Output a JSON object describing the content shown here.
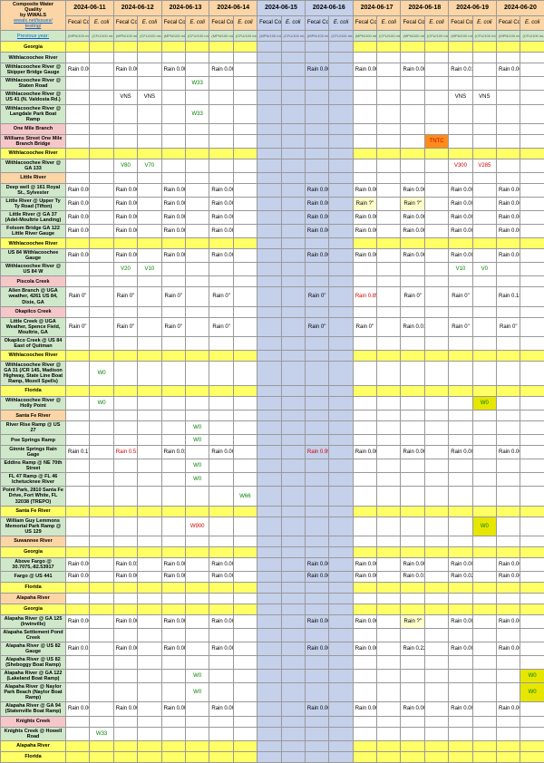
{
  "colors": {
    "orange": "#fbd5a5",
    "green": "#cfe8ca",
    "yellow": "#ffff66",
    "white": "#ffffff",
    "pink": "#f6c7c9",
    "hl_blue": "#c5d0eb",
    "red_text": "#d00000",
    "green_text": "#008000",
    "orange_hl": "#ff8c1a",
    "orange_hl2": "#ffd966",
    "dark_yellow": "#e6e600",
    "lt_yellow": "#ffffcc"
  },
  "header": {
    "title_lines": [
      "Composite Water",
      "Quality",
      "by WWALS"
    ],
    "link1": "wwals.net/issues/",
    "link2": "testing/",
    "prev_year": "Previous year:"
  },
  "dates": [
    "2024-06-11",
    "2024-06-12",
    "2024-06-13",
    "2024-06-14",
    "2024-06-15",
    "2024-06-16",
    "2024-06-17",
    "2024-06-18",
    "2024-06-19",
    "2024-06-20"
  ],
  "sub_fecal": "Fecal Coliform",
  "sub_ecoli": "E. coli",
  "unit_fecal": "(MPN/100 mL)",
  "unit_ecoli": "(CFU/100 mL)",
  "highlight_date_idx": [
    4,
    5
  ],
  "rows": [
    {
      "label": "Georgia",
      "bg": "yellow",
      "rowtype": "section"
    },
    {
      "label": "Withlacoochee River",
      "bg": "green",
      "cells": {}
    },
    {
      "label": "Withlacoochee River @ Skipper Bridge Gauge",
      "bg": "green",
      "cells": {
        "f0": "Rain 0.00\"",
        "f1": "Rain 0.00\"",
        "f2": "Rain 0.00\"",
        "f3": "Rain 0.00\"",
        "f5": "Rain 0.00\"",
        "f6": "Rain 0.00\"",
        "f7": "Rain 0.00\"",
        "f8": "Rain 0.01\"",
        "f9": "Rain 0.00\""
      }
    },
    {
      "label": "Withlacoochee River @ Staten Road",
      "bg": "green",
      "cells": {
        "e2": {
          "v": "W33",
          "c": "green_text"
        }
      }
    },
    {
      "label": "Withlacoochee River @ US 41 (N. Valdosta Rd.)",
      "bg": "green",
      "cells": {
        "f1": "VNS",
        "e1": "VNS",
        "f8": "VNS",
        "e8": "VNS"
      }
    },
    {
      "label": "Withlacoochee River @ Langdale Park Boat Ramp",
      "bg": "green",
      "cells": {
        "e2": {
          "v": "W33",
          "c": "green_text"
        }
      }
    },
    {
      "label": "One Mile Branch",
      "bg": "pink",
      "cells": {}
    },
    {
      "label": "Williams Street One Mile Branch Bridge",
      "bg": "pink",
      "cells": {
        "e7": {
          "v": "TNTC",
          "c": "red_text",
          "bg": "orange_hl"
        }
      }
    },
    {
      "label": "Withlacoochee River",
      "bg": "yellow",
      "cells": {},
      "rowtype": "blank"
    },
    {
      "label": "Withlacoochee River @ GA 133",
      "bg": "green",
      "cells": {
        "f1": {
          "v": "V80",
          "c": "green_text"
        },
        "e1": {
          "v": "V70",
          "c": "green_text"
        },
        "f8": {
          "v": "V300",
          "c": "red_text"
        },
        "e8": {
          "v": "V285",
          "c": "red_text"
        }
      }
    },
    {
      "label": "Little River",
      "bg": "orange",
      "cells": {}
    },
    {
      "label": "Deep well @ 161 Royal St., Sylvester",
      "bg": "green",
      "cells": {
        "f0": "Rain 0.00\"",
        "f1": "Rain 0.00\"",
        "f2": "Rain 0.00\"",
        "f3": "Rain 0.00\"",
        "f5": "Rain 0.00\"",
        "f6": "Rain 0.00\"",
        "f7": "Rain 0.00\"",
        "f8": "Rain 0.00\"",
        "f9": "Rain 0.00\""
      }
    },
    {
      "label": "Little River @ Upper Ty Ty Road (Tifton)",
      "bg": "green",
      "cells": {
        "f0": "Rain 0.00\"",
        "f1": "Rain 0.00\"",
        "f2": "Rain 0.00\"",
        "f3": "Rain 0.00\"",
        "f5": "Rain 0.00\"",
        "f6": {
          "v": "Rain ?\"",
          "bg": "lt_yellow"
        },
        "f7": {
          "v": "Rain ?\"",
          "bg": "lt_yellow"
        },
        "f8": "Rain 0.00\"",
        "f9": "Rain 0.00\""
      }
    },
    {
      "label": "Little River @ GA 37 (Adel-Moultrie Landing)",
      "bg": "green",
      "cells": {
        "f0": "Rain 0.00\"",
        "f1": "Rain 0.00\"",
        "f2": "Rain 0.00\"",
        "f3": "Rain 0.00\"",
        "f5": "Rain 0.00\"",
        "f6": "Rain 0.00\"",
        "f7": "Rain 0.00\"",
        "f8": "Rain 0.00\"",
        "f9": "Rain 0.00\""
      }
    },
    {
      "label": "Folsom Bridge GA 122 Little River Gauge",
      "bg": "green",
      "cells": {
        "f0": "Rain 0.00\"",
        "f1": "Rain 0.00\"",
        "f2": "Rain 0.00\"",
        "f3": "Rain 0.00\"",
        "f5": "Rain 0.00\"",
        "f6": "Rain 0.00\"",
        "f7": "Rain 0.00\"",
        "f8": "Rain 0.00\"",
        "f9": "Rain 0.00\""
      }
    },
    {
      "label": "Withlacoochee River",
      "bg": "yellow",
      "cells": {},
      "rowtype": "blank"
    },
    {
      "label": "US 84 Withlacoochee Gauge",
      "bg": "green",
      "cells": {
        "f0": "Rain 0.00\"",
        "f1": "Rain 0.00\"",
        "f2": "Rain 0.00\"",
        "f3": "Rain 0.00\"",
        "f5": "Rain 0.00\"",
        "f6": "Rain 0.00\"",
        "f7": "Rain 0.00\"",
        "f8": "Rain 0.00\"",
        "f9": "Rain 0.06\""
      }
    },
    {
      "label": "Withlacoochee River @ US 84 W",
      "bg": "green",
      "cells": {
        "f1": {
          "v": "V20",
          "c": "green_text"
        },
        "e1": {
          "v": "V10",
          "c": "green_text"
        },
        "f8": {
          "v": "V10",
          "c": "green_text"
        },
        "e8": {
          "v": "V0",
          "c": "green_text"
        }
      }
    },
    {
      "label": "Piscola Creek",
      "bg": "pink",
      "cells": {}
    },
    {
      "label": "Allen  Branch @ UGA weather, 4261 US 84, Dixie, GA",
      "bg": "green",
      "cells": {
        "f0": "Rain 0\"",
        "f1": "Rain 0\"",
        "f2": "Rain 0\"",
        "f3": "Rain 0\"",
        "f5": "Rain 0\"",
        "f6": {
          "v": "Rain 0.85\"",
          "c": "red_text"
        },
        "f7": "Rain 0\"",
        "f8": "Rain 0\"",
        "f9": "Rain 0.13\""
      }
    },
    {
      "label": "Okapilco Creek",
      "bg": "pink",
      "cells": {}
    },
    {
      "label": "Little Creek @ UGA Weather, Spence Field, Moultrie, GA",
      "bg": "green",
      "cells": {
        "f0": "Rain 0\"",
        "f1": "Rain 0\"",
        "f2": "Rain 0\"",
        "f3": "Rain 0\"",
        "f5": "Rain 0\"",
        "f6": "Rain 0\"",
        "f7": "Rain 0.01\"",
        "f8": "Rain 0\"",
        "f9": "Rain 0\""
      }
    },
    {
      "label": "Okapilco Creek @ US 84 East of Quitman",
      "bg": "green",
      "cells": {}
    },
    {
      "label": "Withlacoochee River",
      "bg": "yellow",
      "cells": {},
      "rowtype": "blank"
    },
    {
      "label": "Withlacoochee River @ GA 31 (/CR 145, Madison Highway, State Line Boat Ramp, Mozell Spells)",
      "bg": "green",
      "cells": {
        "e0": {
          "v": "W0",
          "c": "green_text"
        }
      }
    },
    {
      "label": "Florida",
      "bg": "yellow",
      "rowtype": "section"
    },
    {
      "label": "Withlacoochee River @ Holly Point",
      "bg": "green",
      "cells": {
        "e0": {
          "v": "W0",
          "c": "green_text"
        },
        "e8": {
          "v": "W0",
          "c": "green_text",
          "bg": "dark_yellow"
        }
      }
    },
    {
      "label": "Santa Fe River",
      "bg": "orange",
      "cells": {}
    },
    {
      "label": "River Rise Ramp @ US 27",
      "bg": "green",
      "cells": {
        "e2": {
          "v": "W0",
          "c": "green_text"
        }
      }
    },
    {
      "label": "Poe Springs Ramp",
      "bg": "green",
      "cells": {
        "e2": {
          "v": "W0",
          "c": "green_text"
        }
      }
    },
    {
      "label": "Ginnie Springs Rain Gage",
      "bg": "green",
      "cells": {
        "f0": "Rain 0.17\"",
        "f1": {
          "v": "Rain 0.51\"",
          "c": "red_text"
        },
        "f2": "Rain 0.01\"",
        "f3": "Rain 0.00\"",
        "f5": {
          "v": "Rain 0.99\"",
          "c": "red_text"
        },
        "f6": "Rain 0.00\"",
        "f7": "Rain 0.00\"",
        "f8": "Rain 0.00\"",
        "f9": "Rain 0.00\""
      }
    },
    {
      "label": "Eddins Ramp @ NE 70th Street",
      "bg": "green",
      "cells": {
        "e2": {
          "v": "W0",
          "c": "green_text"
        }
      }
    },
    {
      "label": "FL 47 Ramp @ FL 46 Ichetucknee River",
      "bg": "green",
      "cells": {
        "e2": {
          "v": "W0",
          "c": "green_text"
        }
      }
    },
    {
      "label": "Point Park, 2810 Santa Fe Drive, Fort White, FL 32038 (TREPO)",
      "bg": "green",
      "cells": {
        "e3": {
          "v": "W66",
          "c": "green_text"
        }
      }
    },
    {
      "label": "Santa Fe River",
      "bg": "yellow",
      "cells": {},
      "rowtype": "blank"
    },
    {
      "label": "William Guy Lemmons Memorial Park Ramp @ US 129",
      "bg": "green",
      "cells": {
        "e2": {
          "v": "W900",
          "c": "red_text"
        },
        "e8": {
          "v": "W0",
          "c": "green_text",
          "bg": "dark_yellow"
        }
      }
    },
    {
      "label": "Suwannee River",
      "bg": "orange",
      "cells": {}
    },
    {
      "label": "Georgia",
      "bg": "yellow",
      "rowtype": "section"
    },
    {
      "label": "Above Fargo @ 30.7075,-82.53917",
      "bg": "green",
      "cells": {
        "f0": "Rain 0.00\"",
        "f1": "Rain 0.03\"",
        "f2": "Rain 0.00\"",
        "f3": "Rain 0.00\"",
        "f5": "Rain 0.00\"",
        "f6": "Rain 0.00\"",
        "f7": "Rain 0.00\"",
        "f8": "Rain 0.00\"",
        "f9": "Rain 0.00\""
      }
    },
    {
      "label": "Fargo @ US 441",
      "bg": "green",
      "cells": {
        "f0": "Rain 0.00\"",
        "f1": "Rain 0.00\"",
        "f2": "Rain 0.00\"",
        "f3": "Rain 0.00\"",
        "f5": "Rain 0.00\"",
        "f6": "Rain 0.00\"",
        "f7": "Rain 0.01\"",
        "f8": "Rain 0.02\"",
        "f9": "Rain 0.00\""
      }
    },
    {
      "label": "Florida",
      "bg": "yellow",
      "rowtype": "section"
    },
    {
      "label": "Alapaha River",
      "bg": "orange",
      "cells": {}
    },
    {
      "label": "Georgia",
      "bg": "yellow",
      "rowtype": "section"
    },
    {
      "label": "Alapaha River @ GA 125 (Irwinville)",
      "bg": "green",
      "cells": {
        "f0": "Rain 0.00\"",
        "f1": "Rain 0.00\"",
        "f2": "Rain 0.00\"",
        "f3": "Rain 0.00\"",
        "f5": "Rain 0.00\"",
        "f6": "Rain 0.00\"",
        "f7": {
          "v": "Rain ?\"",
          "bg": "lt_yellow"
        },
        "f8": "Rain 0.00\"",
        "f9": "Rain 0.00\""
      }
    },
    {
      "label": "Alapaha Settlement Pond Creek",
      "bg": "green",
      "cells": {}
    },
    {
      "label": "Alapaha River @ US 82 Gauge",
      "bg": "green",
      "cells": {
        "f0": "Rain 0.01\"",
        "f1": "Rain 0.00\"",
        "f2": "Rain 0.00\"",
        "f3": "Rain 0.00\"",
        "f5": "Rain 0.00\"",
        "f6": "Rain 0.00\"",
        "f7": "Rain 0.22\"",
        "f8": "Rain 0.00\"",
        "f9": "Rain 0.00\""
      }
    },
    {
      "label": "Alapaha River @ US 82 (Sheboggy Boat Ramp)",
      "bg": "green",
      "cells": {}
    },
    {
      "label": "Alapaha River @ GA 122 (Lakeland Boat Ramp)",
      "bg": "green",
      "cells": {
        "e2": {
          "v": "W0",
          "c": "green_text"
        },
        "e9": {
          "v": "W0",
          "c": "green_text",
          "bg": "dark_yellow"
        }
      }
    },
    {
      "label": "Alapaha River @ Naylor Park Beach (Naylor Boat Ramp)",
      "bg": "green",
      "cells": {
        "e2": {
          "v": "W0",
          "c": "green_text"
        },
        "e9": {
          "v": "W0",
          "c": "green_text",
          "bg": "dark_yellow"
        }
      }
    },
    {
      "label": "Alapaha River @ GA 94 (Statenville Boat Ramp)",
      "bg": "green",
      "cells": {
        "f0": "Rain 0.00\"",
        "f1": "Rain 0.00\"",
        "f2": "Rain 0.00\"",
        "f3": "Rain 0.00\"",
        "f5": "Rain 0.00\"",
        "f6": "Rain 0.00\"",
        "f7": "Rain 0.00\"",
        "f8": "Rain 0.00\"",
        "f9": "Rain 0.00\""
      }
    },
    {
      "label": "Knights Creek",
      "bg": "pink",
      "cells": {}
    },
    {
      "label": "Knights Creek @ Howell Road",
      "bg": "green",
      "cells": {
        "e0": {
          "v": "W33",
          "c": "green_text"
        }
      }
    },
    {
      "label": "Alapaha River",
      "bg": "yellow",
      "cells": {},
      "rowtype": "blank"
    },
    {
      "label": "Florida",
      "bg": "yellow",
      "rowtype": "section"
    }
  ]
}
